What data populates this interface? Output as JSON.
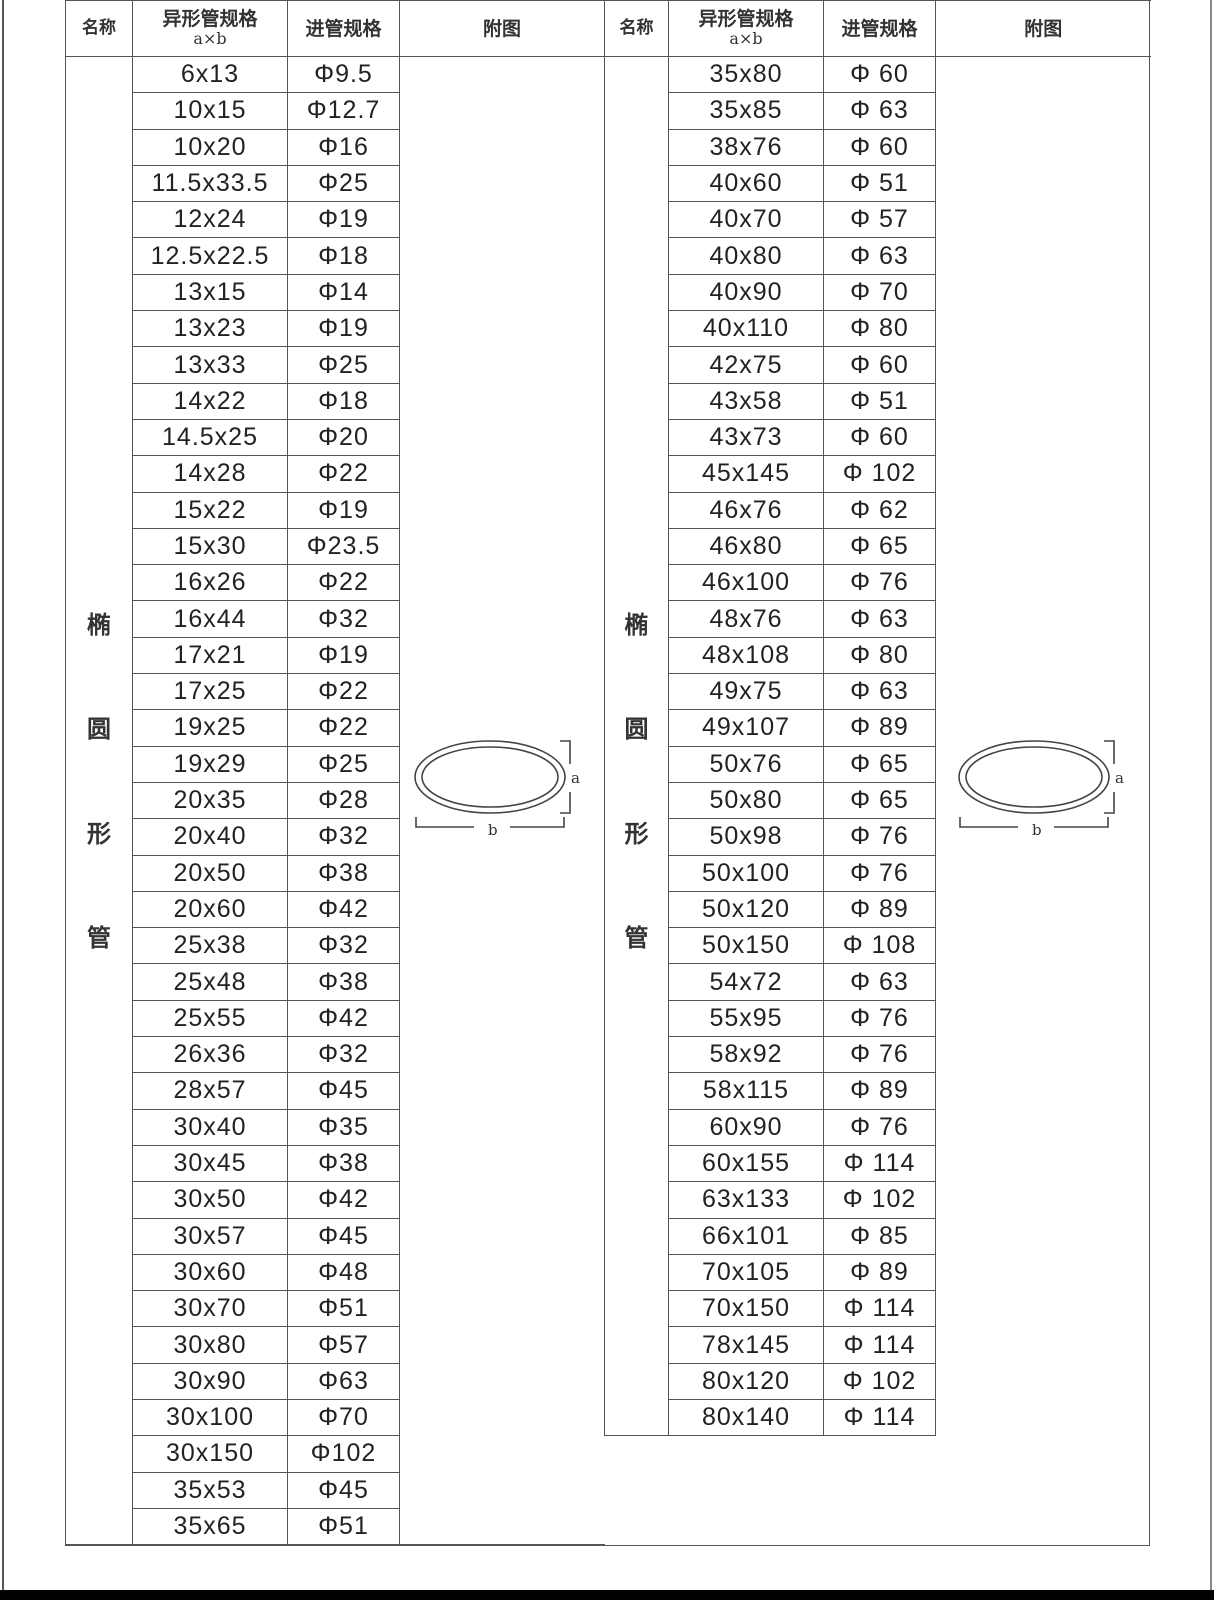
{
  "headers": {
    "name": "名称",
    "spec": "异形管规格",
    "spec_sub": "a×b",
    "tube": "进管规格",
    "figure": "附图"
  },
  "category": [
    "椭",
    "圆",
    "形",
    "管"
  ],
  "figure_labels": {
    "a": "a",
    "b": "b"
  },
  "left_rows": [
    [
      "6x13",
      "Φ9.5"
    ],
    [
      "10x15",
      "Φ12.7"
    ],
    [
      "10x20",
      "Φ16"
    ],
    [
      "11.5x33.5",
      "Φ25"
    ],
    [
      "12x24",
      "Φ19"
    ],
    [
      "12.5x22.5",
      "Φ18"
    ],
    [
      "13x15",
      "Φ14"
    ],
    [
      "13x23",
      "Φ19"
    ],
    [
      "13x33",
      "Φ25"
    ],
    [
      "14x22",
      "Φ18"
    ],
    [
      "14.5x25",
      "Φ20"
    ],
    [
      "14x28",
      "Φ22"
    ],
    [
      "15x22",
      "Φ19"
    ],
    [
      "15x30",
      "Φ23.5"
    ],
    [
      "16x26",
      "Φ22"
    ],
    [
      "16x44",
      "Φ32"
    ],
    [
      "17x21",
      "Φ19"
    ],
    [
      "17x25",
      "Φ22"
    ],
    [
      "19x25",
      "Φ22"
    ],
    [
      "19x29",
      "Φ25"
    ],
    [
      "20x35",
      "Φ28"
    ],
    [
      "20x40",
      "Φ32"
    ],
    [
      "20x50",
      "Φ38"
    ],
    [
      "20x60",
      "Φ42"
    ],
    [
      "25x38",
      "Φ32"
    ],
    [
      "25x48",
      "Φ38"
    ],
    [
      "25x55",
      "Φ42"
    ],
    [
      "26x36",
      "Φ32"
    ],
    [
      "28x57",
      "Φ45"
    ],
    [
      "30x40",
      "Φ35"
    ],
    [
      "30x45",
      "Φ38"
    ],
    [
      "30x50",
      "Φ42"
    ],
    [
      "30x57",
      "Φ45"
    ],
    [
      "30x60",
      "Φ48"
    ],
    [
      "30x70",
      "Φ51"
    ],
    [
      "30x80",
      "Φ57"
    ],
    [
      "30x90",
      "Φ63"
    ],
    [
      "30x100",
      "Φ70"
    ],
    [
      "30x150",
      "Φ102"
    ],
    [
      "35x53",
      "Φ45"
    ],
    [
      "35x65",
      "Φ51"
    ]
  ],
  "right_rows": [
    [
      "35x80",
      "Φ 60"
    ],
    [
      "35x85",
      "Φ 63"
    ],
    [
      "38x76",
      "Φ 60"
    ],
    [
      "40x60",
      "Φ 51"
    ],
    [
      "40x70",
      "Φ 57"
    ],
    [
      "40x80",
      "Φ 63"
    ],
    [
      "40x90",
      "Φ 70"
    ],
    [
      "40x110",
      "Φ 80"
    ],
    [
      "42x75",
      "Φ 60"
    ],
    [
      "43x58",
      "Φ 51"
    ],
    [
      "43x73",
      "Φ 60"
    ],
    [
      "45x145",
      "Φ 102"
    ],
    [
      "46x76",
      "Φ 62"
    ],
    [
      "46x80",
      "Φ 65"
    ],
    [
      "46x100",
      "Φ 76"
    ],
    [
      "48x76",
      "Φ 63"
    ],
    [
      "48x108",
      "Φ 80"
    ],
    [
      "49x75",
      "Φ 63"
    ],
    [
      "49x107",
      "Φ 89"
    ],
    [
      "50x76",
      "Φ 65"
    ],
    [
      "50x80",
      "Φ 65"
    ],
    [
      "50x98",
      "Φ 76"
    ],
    [
      "50x100",
      "Φ 76"
    ],
    [
      "50x120",
      "Φ 89"
    ],
    [
      "50x150",
      "Φ 108"
    ],
    [
      "54x72",
      "Φ 63"
    ],
    [
      "55x95",
      "Φ 76"
    ],
    [
      "58x92",
      "Φ 76"
    ],
    [
      "58x115",
      "Φ 89"
    ],
    [
      "60x90",
      "Φ 76"
    ],
    [
      "60x155",
      "Φ 114"
    ],
    [
      "63x133",
      "Φ 102"
    ],
    [
      "66x101",
      "Φ 85"
    ],
    [
      "70x105",
      "Φ 89"
    ],
    [
      "70x150",
      "Φ 114"
    ],
    [
      "78x145",
      "Φ 114"
    ],
    [
      "80x120",
      "Φ 102"
    ],
    [
      "80x140",
      "Φ 114"
    ]
  ]
}
